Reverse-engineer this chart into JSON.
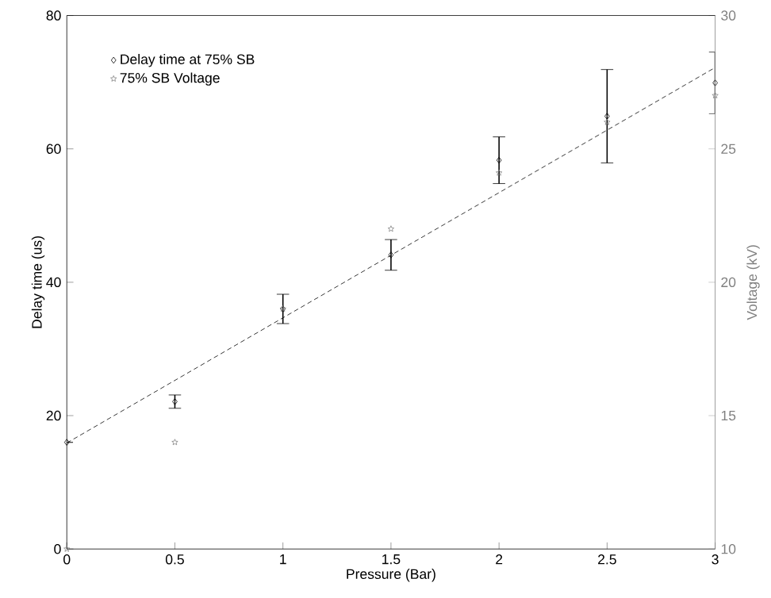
{
  "chart_data": {
    "type": "scatter",
    "xlabel": "Pressure (Bar)",
    "ylabel": "Delay time (us)",
    "y2label": "Voltage (kV)",
    "x": [
      0,
      0.5,
      1,
      1.5,
      2,
      2.5,
      3
    ],
    "xlim": [
      0,
      3
    ],
    "xticks": [
      0,
      0.5,
      1,
      1.5,
      2,
      2.5,
      3
    ],
    "ylim": [
      0,
      80
    ],
    "yticks": [
      0,
      20,
      40,
      60,
      80
    ],
    "y2lim": [
      10,
      30
    ],
    "y2ticks": [
      10,
      15,
      20,
      25,
      30
    ],
    "grid": false,
    "legend": "top left",
    "series": [
      {
        "name": "Delay time at 75% SB",
        "color": "#000000",
        "marker": "diamond",
        "values": [
          16,
          22.1,
          36,
          44.1,
          58.3,
          64.9,
          69.9
        ],
        "errors": [
          null,
          1,
          2.2,
          2.3,
          3.5,
          7,
          4.6
        ]
      },
      {
        "name": "75% SB Voltage",
        "color": "#808080",
        "marker": "star",
        "axis": "y2",
        "values": [
          10,
          14,
          19,
          22,
          24.1,
          26,
          27
        ]
      },
      {
        "type": "line",
        "color": "#000000",
        "line_style": "dashed",
        "marker": "none",
        "x": [
          0,
          3
        ],
        "values": [
          15.9,
          72.2
        ]
      }
    ]
  }
}
